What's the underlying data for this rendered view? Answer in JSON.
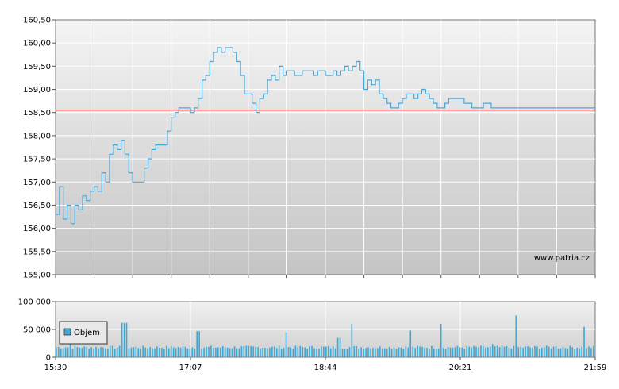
{
  "watermark": "www.patria.cz",
  "colors": {
    "line": "#4aa8d8",
    "reference": "#cc2222",
    "volume": "#3fa9d6",
    "bg_top": "#f2f2f2",
    "bg_bottom": "#c8c8c8"
  },
  "chart_data": [
    {
      "type": "line",
      "ylim": [
        155.0,
        160.5
      ],
      "yticks": [
        "155,00",
        "155,50",
        "156,00",
        "156,50",
        "157,00",
        "157,50",
        "158,00",
        "158,50",
        "159,00",
        "159,50",
        "160,00",
        "160,50"
      ],
      "reference_line": 158.55,
      "grid": true,
      "series": [
        {
          "x": [
            0,
            1,
            2,
            3,
            4,
            5,
            6,
            7,
            8,
            9,
            10,
            11,
            12,
            13,
            14,
            15,
            16,
            17,
            18,
            19,
            20,
            21,
            22,
            23,
            24,
            25,
            26,
            27,
            28,
            29,
            30,
            31,
            32,
            33,
            34,
            35,
            36,
            37,
            38,
            39,
            40,
            41,
            42,
            43,
            44,
            45,
            46,
            47,
            48,
            49,
            50,
            51,
            52,
            53,
            54,
            55,
            56,
            57,
            58,
            59,
            60,
            61,
            62,
            63,
            64,
            65,
            66,
            67,
            68,
            69,
            70,
            71,
            72,
            73,
            74,
            75,
            76,
            77,
            78,
            79,
            80,
            81,
            82,
            83,
            84,
            85,
            86,
            87,
            88,
            89,
            90,
            91,
            92,
            93,
            94,
            95,
            96,
            97,
            98,
            99,
            100,
            101,
            102,
            103,
            104,
            105,
            106,
            107,
            108,
            109,
            110,
            111,
            112,
            113,
            114,
            115,
            116,
            117,
            118,
            119,
            120,
            121,
            122,
            123,
            124,
            125,
            126,
            127,
            128,
            129,
            130,
            131,
            132,
            133,
            134,
            135,
            136,
            137,
            138,
            139,
            140
          ],
          "values": [
            156.3,
            156.9,
            156.2,
            156.5,
            156.1,
            156.5,
            156.4,
            156.7,
            156.6,
            156.8,
            156.9,
            156.8,
            157.2,
            157.0,
            157.6,
            157.8,
            157.7,
            157.9,
            157.6,
            157.2,
            157.0,
            157.0,
            157.0,
            157.3,
            157.5,
            157.7,
            157.8,
            157.8,
            157.8,
            158.1,
            158.4,
            158.5,
            158.6,
            158.6,
            158.6,
            158.5,
            158.6,
            158.8,
            159.2,
            159.3,
            159.6,
            159.8,
            159.9,
            159.8,
            159.9,
            159.9,
            159.8,
            159.6,
            159.3,
            158.9,
            158.9,
            158.7,
            158.5,
            158.8,
            158.9,
            159.2,
            159.3,
            159.2,
            159.5,
            159.3,
            159.4,
            159.4,
            159.3,
            159.3,
            159.4,
            159.4,
            159.4,
            159.3,
            159.4,
            159.4,
            159.3,
            159.3,
            159.4,
            159.3,
            159.4,
            159.5,
            159.4,
            159.5,
            159.6,
            159.4,
            159.0,
            159.2,
            159.1,
            159.2,
            158.9,
            158.8,
            158.7,
            158.6,
            158.6,
            158.7,
            158.8,
            158.9,
            158.9,
            158.8,
            158.9,
            159.0,
            158.9,
            158.8,
            158.7,
            158.6,
            158.6,
            158.7,
            158.8,
            158.8,
            158.8,
            158.8,
            158.7,
            158.7,
            158.6,
            158.6,
            158.6,
            158.7,
            158.7,
            158.6,
            158.6,
            158.6,
            158.6,
            158.6,
            158.6,
            158.6,
            158.6,
            158.6,
            158.6,
            158.6,
            158.6,
            158.6,
            158.6,
            158.6,
            158.6,
            158.6,
            158.6,
            158.6,
            158.6,
            158.6,
            158.6,
            158.6,
            158.6,
            158.6,
            158.6,
            158.6,
            158.6
          ],
          "x_range": [
            0,
            140
          ]
        }
      ]
    },
    {
      "type": "bar",
      "ylim": [
        0,
        100000
      ],
      "yticks": [
        "0",
        "50 000",
        "100 000"
      ],
      "xticks": [
        "15:30",
        "17:07",
        "18:44",
        "20:21",
        "21:59"
      ],
      "grid": true,
      "legend": "top-left",
      "series": [
        {
          "name": "Objem",
          "values": []
        }
      ]
    }
  ]
}
